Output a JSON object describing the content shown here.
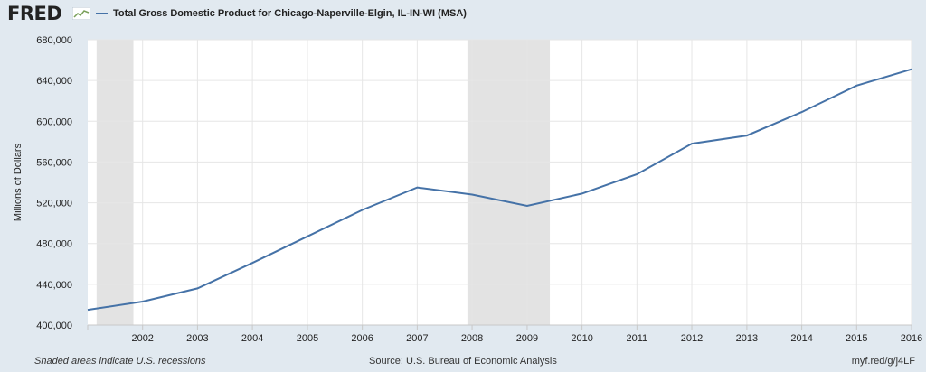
{
  "header": {
    "logo_text": "FRED",
    "logo_icon": "fred-chart-icon"
  },
  "colors": {
    "background": "#e1e9f0",
    "plot_area": "#ffffff",
    "line": "#4572a7",
    "recession_shade": "#e3e3e3",
    "grid": "#e6e6e6"
  },
  "footer": {
    "note": "Shaded areas indicate U.S. recessions",
    "source": "Source: U.S. Bureau of Economic Analysis",
    "link": "myf.red/g/j4LF"
  },
  "chart_data": {
    "type": "line",
    "title": "",
    "xlabel": "",
    "ylabel": "Millions of Dollars",
    "series": [
      {
        "name": "Total Gross Domestic Product for Chicago-Naperville-Elgin, IL-IN-WI (MSA)",
        "x": [
          "2001-01-01",
          "2002-01-01",
          "2003-01-01",
          "2004-01-01",
          "2005-01-01",
          "2006-01-01",
          "2007-01-01",
          "2008-01-01",
          "2009-01-01",
          "2010-01-01",
          "2011-01-01",
          "2012-01-01",
          "2013-01-01",
          "2014-01-01",
          "2015-01-01",
          "2016-01-01"
        ],
        "values": [
          415000,
          423000,
          436000,
          461000,
          487000,
          513000,
          535000,
          528000,
          517000,
          529000,
          548000,
          578000,
          586000,
          609000,
          635000,
          651000
        ]
      }
    ],
    "x_ticks": [
      "2002",
      "2003",
      "2004",
      "2005",
      "2006",
      "2007",
      "2008",
      "2009",
      "2010",
      "2011",
      "2012",
      "2013",
      "2014",
      "2015",
      "2016"
    ],
    "y_ticks": [
      "400,000",
      "440,000",
      "480,000",
      "520,000",
      "560,000",
      "600,000",
      "640,000",
      "680,000"
    ],
    "ylim": [
      400000,
      680000
    ],
    "xlim": [
      "2001-01-01",
      "2016-01-01"
    ],
    "recessions": [
      {
        "start": "2001-03-01",
        "end": "2001-11-01"
      },
      {
        "start": "2007-12-01",
        "end": "2009-06-01"
      }
    ],
    "grid": true,
    "legend_position": "top-left"
  }
}
